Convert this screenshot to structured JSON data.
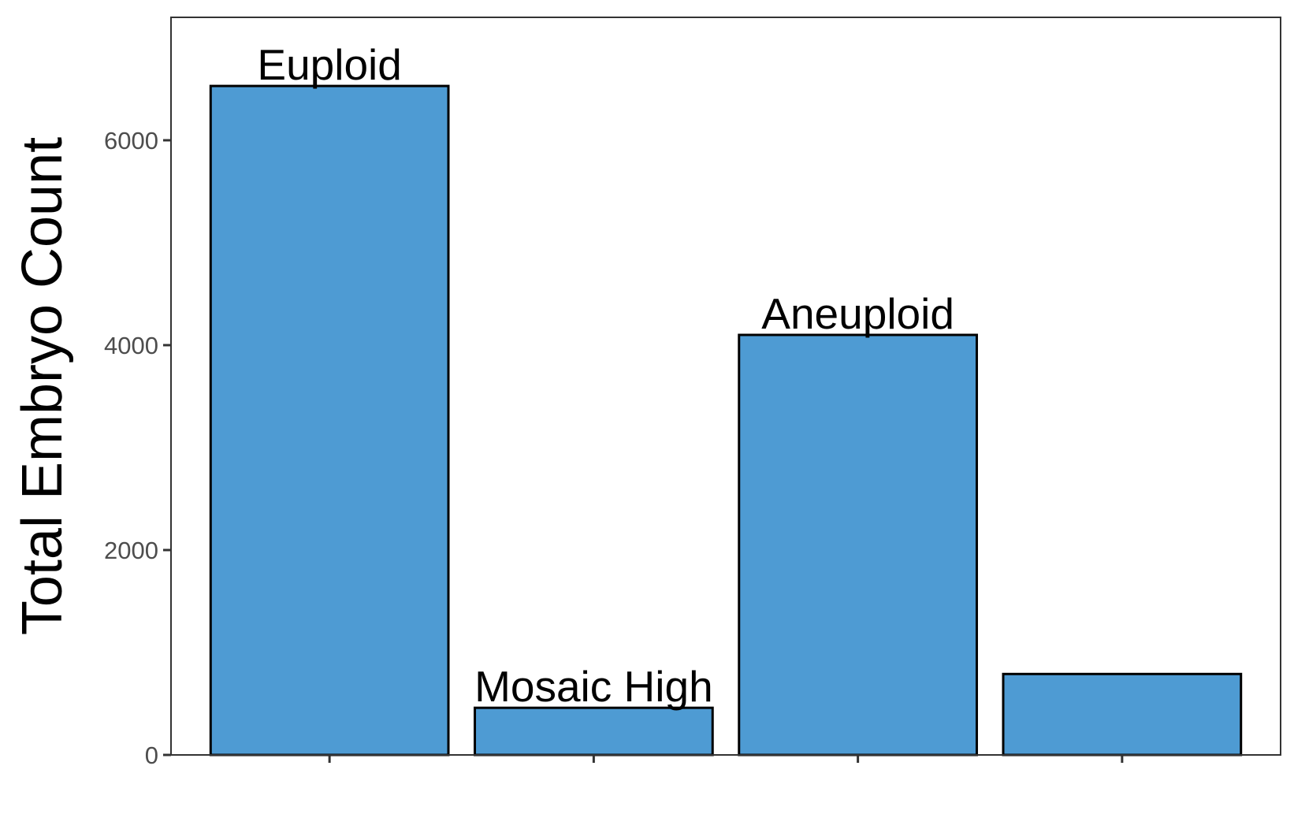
{
  "chart_data": {
    "type": "bar",
    "title": "",
    "xlabel": "",
    "ylabel": "Total Embryo Count",
    "categories": [
      "Euploid",
      "Mosaic High",
      "Aneuploid",
      ""
    ],
    "values": [
      6530,
      460,
      4100,
      790
    ],
    "bar_labels": [
      "Euploid",
      "Mosaic High",
      "Aneuploid",
      ""
    ],
    "ylim": [
      0,
      7200
    ],
    "yticks": [
      0,
      2000,
      4000,
      6000
    ],
    "ytick_labels": [
      "0",
      "2000",
      "4000",
      "6000"
    ],
    "grid": false,
    "legend": "none",
    "colors": {
      "bar_fill": "#4e9bd3",
      "bar_stroke": "#000000",
      "panel_border": "#333333",
      "tick_text": "#4d4d4d"
    }
  }
}
